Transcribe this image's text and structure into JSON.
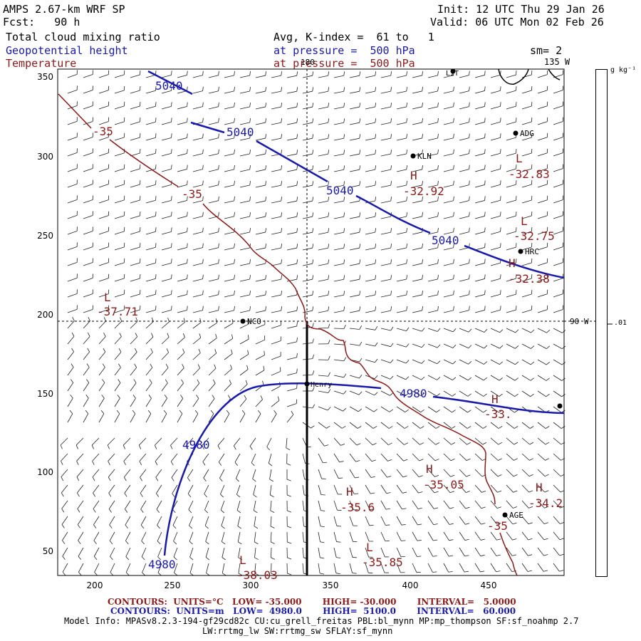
{
  "header": {
    "model": "AMPS 2.67-km WRF SP",
    "forecast": "Fcst:   90 h",
    "init": "Init: 12 UTC Thu 29 Jan 26",
    "valid": "Valid: 06 UTC Mon 02 Feb 26",
    "field1": "Total cloud mixing ratio",
    "field1_info": "Avg, K-index =  61 to   1",
    "field2": "Geopotential height",
    "field2_info": "at pressure =  500 hPa",
    "field3": "Temperature",
    "field3_info": "at pressure =  500 hPa",
    "smoothing": "sm= 2",
    "lon_label": "135 W"
  },
  "map": {
    "x_ticks": [
      "200",
      "250",
      "300",
      "350",
      "400",
      "450"
    ],
    "y_ticks": [
      "350",
      "300",
      "250",
      "200",
      "150",
      "100",
      "50"
    ],
    "meridian_labels": [
      {
        "text": "180"
      },
      {
        "text": "90 W"
      }
    ],
    "stations": [
      {
        "name": "ADG"
      },
      {
        "name": "KLN"
      },
      {
        "name": "HRC"
      },
      {
        "name": "NCO"
      },
      {
        "name": "Henry"
      },
      {
        "name": "AGE"
      },
      {
        "name": "LIT"
      },
      {
        "name": ""
      }
    ],
    "height_contour_labels": [
      "5040",
      "5040",
      "5040",
      "5040",
      "4980",
      "4980",
      "4980"
    ],
    "temperature_contour_labels": [
      "-35",
      "-35",
      "-35"
    ],
    "extrema": [
      {
        "type": "L",
        "value": "-32.83",
        "color": "temperature"
      },
      {
        "type": "H",
        "value": "-32.92",
        "color": "temperature"
      },
      {
        "type": "L",
        "value": "-32.75",
        "color": "temperature"
      },
      {
        "type": "H",
        "value": "-32.38",
        "color": "temperature"
      },
      {
        "type": "L",
        "value": "-37.71",
        "color": "temperature"
      },
      {
        "type": "H",
        "value": "-33.",
        "color": "temperature"
      },
      {
        "type": "H",
        "value": "-35.05",
        "color": "temperature"
      },
      {
        "type": "H",
        "value": "-35.6",
        "color": "temperature"
      },
      {
        "type": "H",
        "value": "-34.2",
        "color": "temperature"
      },
      {
        "type": "L",
        "value": "-35.85",
        "color": "temperature"
      },
      {
        "type": "L",
        "value": "-38.03",
        "color": "temperature"
      }
    ]
  },
  "colorbar": {
    "unit": "g kg⁻¹",
    "tick": ".01"
  },
  "legend": {
    "temp": "CONTOURS:  UNITS=°C   LOW= -35.000       HIGH= -30.000       INTERVAL=   5.0000",
    "height": "CONTOURS:  UNITS=m   LOW=  4980.0       HIGH=  5100.0       INTERVAL=   60.000"
  },
  "model_info": {
    "line1": "Model Info: MPASv8.2.3-194-gf29cd82c CU:cu_grell_freitas PBL:bl_mynn MP:mp_thompson SF:sf_noahmp 2.7",
    "line2": "LW:rrtmg_lw SW:rrtmg_sw SFLAY:sf_mynn"
  },
  "colors": {
    "height": "#1a1aa8",
    "temperature": "#8b1a1a",
    "barb": "#222222"
  }
}
